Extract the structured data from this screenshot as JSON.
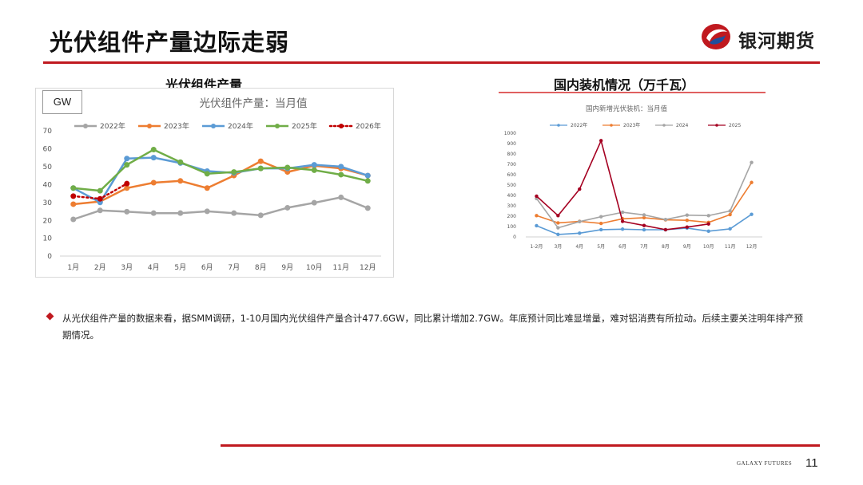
{
  "header": {
    "title": "光伏组件产量边际走弱",
    "brand": "银河期货"
  },
  "left_panel": {
    "heading": "光伏组件产量",
    "unit_box": "GW"
  },
  "right_panel": {
    "heading": "国内装机情况（万千瓦）"
  },
  "bullet": {
    "text": "从光伏组件产量的数据来看，据SMM调研，1-10月国内光伏组件产量合计477.6GW，同比累计增加2.7GW。年底预计同比难显增量，难对铝消费有所拉动。后续主要关注明年排产预期情况。"
  },
  "footer": {
    "brand": "GALAXY FUTURES",
    "page_number": "11"
  },
  "colors": {
    "accent_red": "#c0191f"
  },
  "chart_data": [
    {
      "type": "line",
      "title": "光伏组件产量：当月值",
      "categories": [
        "1月",
        "2月",
        "3月",
        "4月",
        "5月",
        "6月",
        "7月",
        "8月",
        "9月",
        "10月",
        "11月",
        "12月"
      ],
      "ylim": [
        0,
        70
      ],
      "yticks": [
        0,
        10,
        20,
        30,
        40,
        50,
        60,
        70
      ],
      "grid": false,
      "legend": "top",
      "series": [
        {
          "name": "2022年",
          "color": "#a5a5a5",
          "style": "solid",
          "values": [
            20.5,
            25.5,
            24.8,
            24.0,
            24.0,
            25.0,
            24.0,
            22.8,
            27.0,
            29.8,
            32.8,
            26.8
          ]
        },
        {
          "name": "2023年",
          "color": "#ed7d31",
          "style": "solid",
          "values": [
            29.0,
            30.5,
            38.0,
            41.0,
            42.0,
            38.0,
            45.0,
            53.0,
            47.0,
            50.5,
            49.0,
            45.0
          ]
        },
        {
          "name": "2024年",
          "color": "#5b9bd5",
          "style": "solid",
          "values": [
            38.0,
            30.0,
            54.5,
            55.0,
            52.0,
            47.5,
            46.5,
            49.0,
            49.0,
            51.0,
            50.0,
            45.0
          ]
        },
        {
          "name": "2025年",
          "color": "#70ad47",
          "style": "solid",
          "values": [
            38.0,
            36.5,
            51.0,
            59.5,
            52.5,
            46.0,
            47.0,
            49.0,
            49.5,
            48.0,
            45.5,
            42.0
          ]
        },
        {
          "name": "2026年",
          "color": "#c00000",
          "style": "dotted",
          "values": [
            33.5,
            32.0,
            40.5,
            null,
            null,
            null,
            null,
            null,
            null,
            null,
            null,
            null
          ]
        }
      ]
    },
    {
      "type": "line",
      "title": "国内新增光伏装机：当月值",
      "categories": [
        "1-2月",
        "3月",
        "4月",
        "5月",
        "6月",
        "7月",
        "8月",
        "9月",
        "10月",
        "11月",
        "12月"
      ],
      "ylim": [
        0,
        1000
      ],
      "yticks": [
        0,
        100,
        200,
        300,
        400,
        500,
        600,
        700,
        800,
        900,
        1000
      ],
      "grid": false,
      "legend": "top",
      "series": [
        {
          "name": "2022年",
          "color": "#5b9bd5",
          "values": [
            108,
            24,
            36,
            70,
            75,
            69,
            69,
            85,
            55,
            78,
            218
          ]
        },
        {
          "name": "2023年",
          "color": "#ed7d31",
          "values": [
            205,
            135,
            150,
            130,
            175,
            185,
            165,
            160,
            140,
            215,
            525
          ]
        },
        {
          "name": "2024",
          "color": "#a5a5a5",
          "values": [
            370,
            88,
            148,
            195,
            238,
            212,
            168,
            210,
            205,
            250,
            718
          ]
        },
        {
          "name": "2025",
          "color": "#a50021",
          "values": [
            393,
            205,
            461,
            928,
            150,
            110,
            70,
            95,
            125,
            null,
            null
          ]
        }
      ]
    }
  ]
}
